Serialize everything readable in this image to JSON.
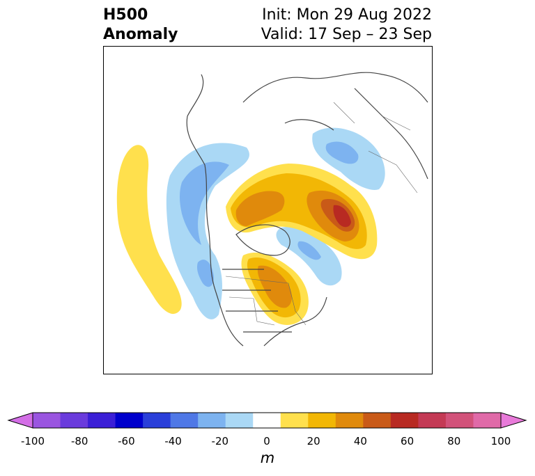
{
  "title": {
    "line1": "H500",
    "line2": "Anomaly"
  },
  "info": {
    "init": "Init: Mon 29 Aug 2022",
    "valid": "Valid: 17 Sep – 23 Sep"
  },
  "colorbar": {
    "unit": "m",
    "ticks": [
      "-100",
      "-80",
      "-60",
      "-40",
      "-20",
      "0",
      "20",
      "40",
      "60",
      "80",
      "100"
    ],
    "colors": [
      "#d36ee6",
      "#9a55e0",
      "#6a3bdc",
      "#3b1fd6",
      "#0000cc",
      "#2a3fd9",
      "#4f78e6",
      "#7db3f0",
      "#aad8f5",
      "#ffffff",
      "#ffe04d",
      "#f2b705",
      "#e08a0c",
      "#c95a18",
      "#b82a22",
      "#c43a55",
      "#d2527a",
      "#e06aa8",
      "#e87ad9"
    ]
  },
  "colors": {
    "light_blue": "#aad8f5",
    "mid_blue": "#7db3f0",
    "blue": "#4f78e6",
    "yellow": "#ffe04d",
    "gold": "#f2b705",
    "orange": "#e08a0c",
    "dark_orange": "#c95a18",
    "red": "#b82a22",
    "coast": "#444444"
  }
}
